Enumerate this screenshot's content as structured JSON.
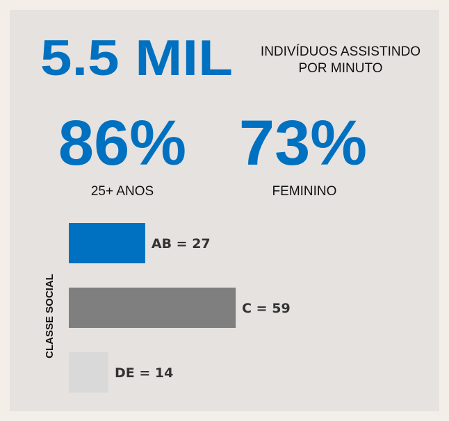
{
  "headline": {
    "value": "5.5 MIL",
    "caption_lines": [
      "INDIVÍDUOS ASSISTINDO",
      "POR MINUTO"
    ]
  },
  "stats": [
    {
      "value": "86%",
      "label": "25+ ANOS"
    },
    {
      "value": "73%",
      "label": "FEMININO"
    }
  ],
  "chart_data": {
    "type": "bar",
    "orientation": "horizontal",
    "ylabel": "CLASSE SOCIAL",
    "categories": [
      "AB",
      "C",
      "DE"
    ],
    "values": [
      27,
      59,
      14
    ],
    "value_labels": [
      "AB =  27",
      "C =  59",
      "DE =  14"
    ],
    "colors": [
      "#0070c0",
      "#7f7f7f",
      "#d9d9d9"
    ]
  }
}
